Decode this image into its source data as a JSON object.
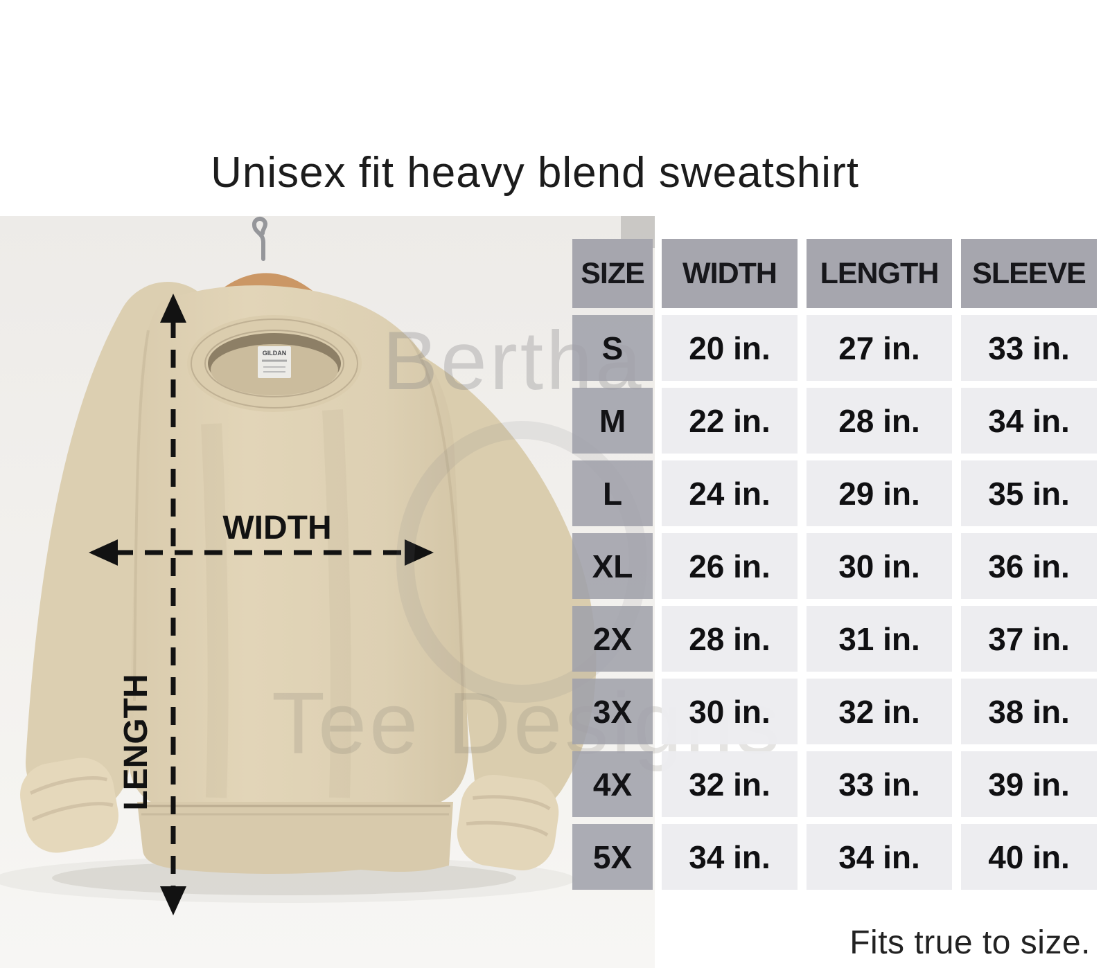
{
  "page": {
    "title": "Unisex fit heavy blend sweatshirt",
    "footnote": "Fits true to size."
  },
  "diagram": {
    "width_label": "WIDTH",
    "length_label": "LENGTH",
    "brand_tag": "GILDAN"
  },
  "watermark": {
    "brand": "Bertha",
    "sub": "Tee Designs"
  },
  "colors": {
    "background": "#ffffff",
    "table_header_gray": "#a6a6ae",
    "table_size_cell_gray": "#a2a3ac",
    "table_value_cell_gray": "#ececee",
    "table_text": "#141414",
    "sweatshirt_tan": "#ddd0b3",
    "hanger_wood": "#cb9765",
    "photo_wall": "#f2f0ed"
  },
  "chart_data": {
    "type": "table",
    "title": "Unisex fit heavy blend sweatshirt",
    "columns": [
      "SIZE",
      "WIDTH",
      "LENGTH",
      "SLEEVE"
    ],
    "rows": [
      [
        "S",
        "20 in.",
        "27 in.",
        "33 in."
      ],
      [
        "M",
        "22 in.",
        "28 in.",
        "34 in."
      ],
      [
        "L",
        "24 in.",
        "29 in.",
        "35 in."
      ],
      [
        "XL",
        "26 in.",
        "30 in.",
        "36 in."
      ],
      [
        "2X",
        "28 in.",
        "31 in.",
        "37 in."
      ],
      [
        "3X",
        "30 in.",
        "32 in.",
        "38 in."
      ],
      [
        "4X",
        "32 in.",
        "33 in.",
        "39 in."
      ],
      [
        "5X",
        "34 in.",
        "34 in.",
        "40 in."
      ]
    ],
    "units": "inches",
    "note": "Fits true to size."
  }
}
